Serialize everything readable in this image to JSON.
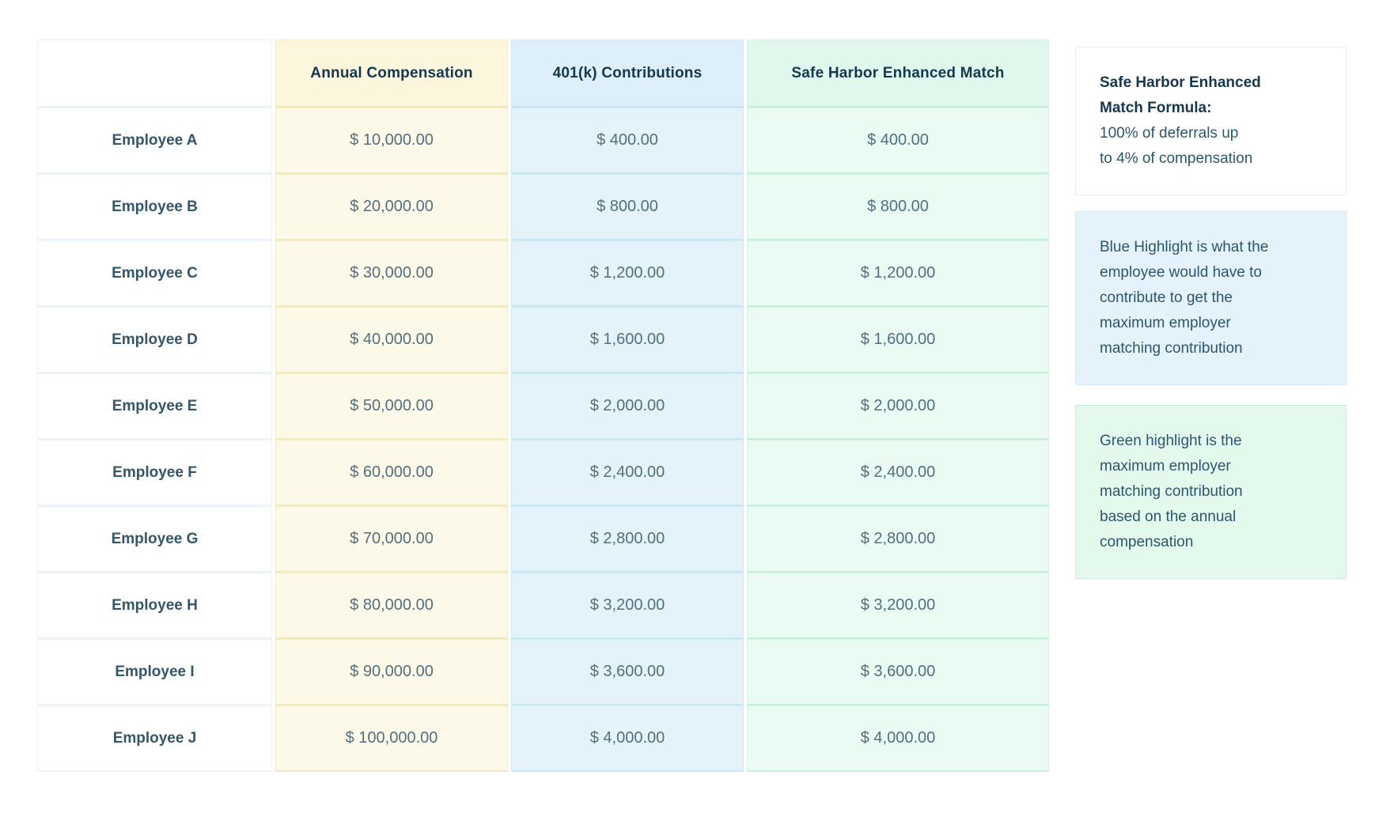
{
  "table": {
    "columns": [
      {
        "key": "name",
        "label": "",
        "highlight": "none"
      },
      {
        "key": "compensation",
        "label": "Annual Compensation",
        "highlight": "yellow"
      },
      {
        "key": "contributions",
        "label": "401(k) Contributions",
        "highlight": "blue"
      },
      {
        "key": "match",
        "label": "Safe Harbor Enhanced Match",
        "highlight": "green"
      }
    ],
    "rows": [
      {
        "name": "Employee A",
        "compensation": "$ 10,000.00",
        "contributions": "$ 400.00",
        "match": "$ 400.00"
      },
      {
        "name": "Employee B",
        "compensation": "$ 20,000.00",
        "contributions": "$ 800.00",
        "match": "$ 800.00"
      },
      {
        "name": "Employee C",
        "compensation": "$ 30,000.00",
        "contributions": "$ 1,200.00",
        "match": "$ 1,200.00"
      },
      {
        "name": "Employee D",
        "compensation": "$ 40,000.00",
        "contributions": "$ 1,600.00",
        "match": "$ 1,600.00"
      },
      {
        "name": "Employee E",
        "compensation": "$ 50,000.00",
        "contributions": "$ 2,000.00",
        "match": "$ 2,000.00"
      },
      {
        "name": "Employee F",
        "compensation": "$ 60,000.00",
        "contributions": "$ 2,400.00",
        "match": "$ 2,400.00"
      },
      {
        "name": "Employee G",
        "compensation": "$ 70,000.00",
        "contributions": "$ 2,800.00",
        "match": "$ 2,800.00"
      },
      {
        "name": "Employee H",
        "compensation": "$ 80,000.00",
        "contributions": "$ 3,200.00",
        "match": "$ 3,200.00"
      },
      {
        "name": "Employee I",
        "compensation": "$ 90,000.00",
        "contributions": "$ 3,600.00",
        "match": "$ 3,600.00"
      },
      {
        "name": "Employee J",
        "compensation": "$ 100,000.00",
        "contributions": "$ 4,000.00",
        "match": "$ 4,000.00"
      }
    ]
  },
  "notes": {
    "formula": {
      "title": "Safe Harbor Enhanced\nMatch Formula:",
      "body": "100% of deferrals up\nto 4% of compensation"
    },
    "blue": {
      "body": "Blue Highlight is what the\nemployee would have to\ncontribute to get the\nmaximum employer\nmatching contribution"
    },
    "green": {
      "body": "Green highlight is the\nmaximum employer\nmatching contribution\nbased on the annual\ncompensation"
    }
  },
  "colors": {
    "yellow_cell": "#fdf9e8",
    "yellow_header": "#fcf6dd",
    "blue_cell": "#e4f3fa",
    "blue_header": "#ddeff8",
    "green_cell": "#e9fbf2",
    "green_header": "#e0f8eb",
    "header_text": "#14384f",
    "name_text": "#32576d",
    "value_text": "#51707f",
    "note_blue_bg": "#e4f3fb",
    "note_green_bg": "#e3f9ec"
  }
}
